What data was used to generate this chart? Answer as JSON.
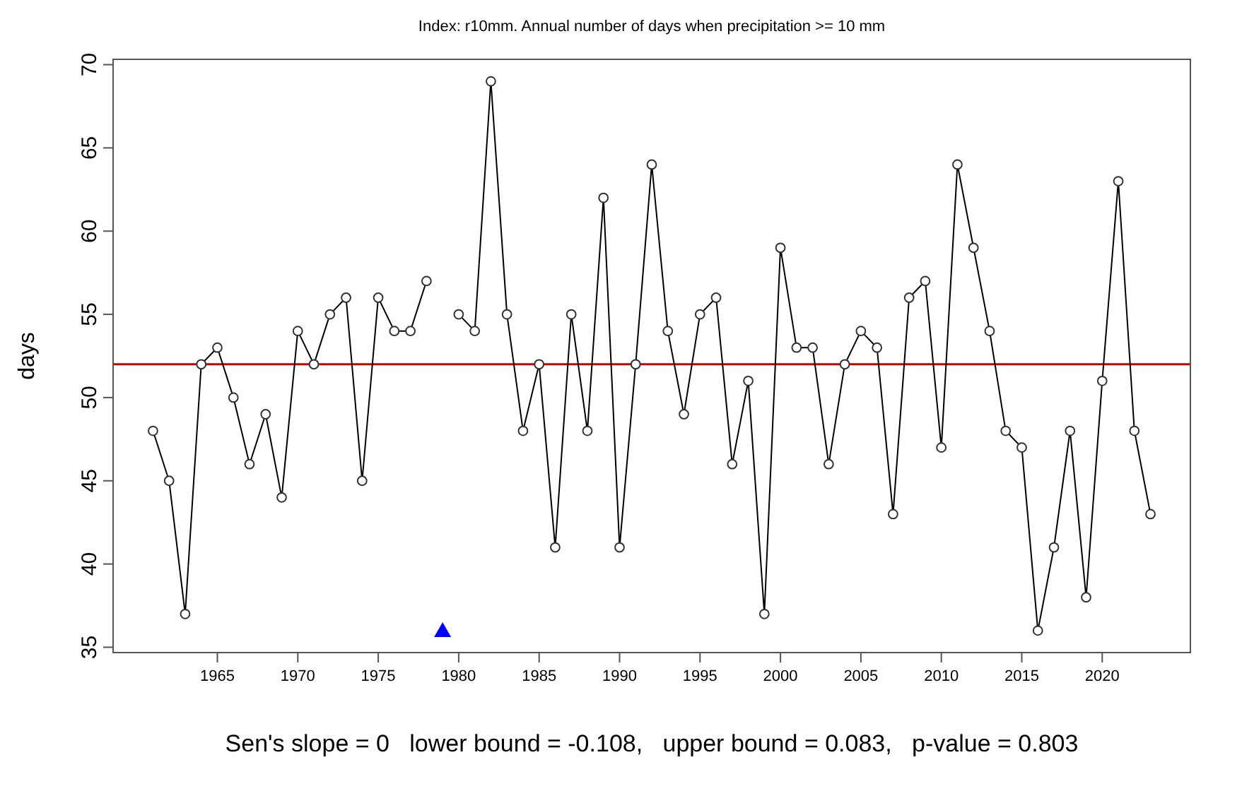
{
  "chart_data": {
    "type": "line",
    "title": "Index: r10mm. Annual number of days when precipitation >= 10 mm",
    "ylabel": "days",
    "x": [
      1961,
      1962,
      1963,
      1964,
      1965,
      1966,
      1967,
      1968,
      1969,
      1970,
      1971,
      1972,
      1973,
      1974,
      1975,
      1976,
      1977,
      1978,
      1979,
      1980,
      1981,
      1982,
      1983,
      1984,
      1985,
      1986,
      1987,
      1988,
      1989,
      1990,
      1991,
      1992,
      1993,
      1994,
      1995,
      1996,
      1997,
      1998,
      1999,
      2000,
      2001,
      2002,
      2003,
      2004,
      2005,
      2006,
      2007,
      2008,
      2009,
      2010,
      2011,
      2012,
      2013,
      2014,
      2015,
      2016,
      2017,
      2018,
      2019,
      2020,
      2021,
      2022,
      2023
    ],
    "series": [
      {
        "color": "#000000",
        "marker": "circle",
        "values": [
          48,
          45,
          37,
          52,
          53,
          50,
          46,
          49,
          44,
          54,
          52,
          55,
          56,
          45,
          56,
          54,
          54,
          57,
          null,
          55,
          54,
          69,
          55,
          48,
          52,
          41,
          55,
          48,
          62,
          41,
          52,
          64,
          54,
          49,
          55,
          56,
          46,
          51,
          37,
          59,
          53,
          53,
          46,
          52,
          54,
          53,
          43,
          56,
          57,
          47,
          64,
          59,
          54,
          48,
          47,
          36,
          41,
          48,
          38,
          51,
          63,
          48,
          43
        ]
      },
      {
        "type": "scatter",
        "color": "#0000ff",
        "marker": "triangle",
        "x": [
          1979
        ],
        "values": [
          36
        ]
      }
    ],
    "xlim": [
      1958.52,
      2025.48
    ],
    "xticks": [
      1965,
      1970,
      1975,
      1980,
      1985,
      1990,
      1995,
      2000,
      2005,
      2010,
      2015,
      2020
    ],
    "ylim": [
      34.68,
      70.32
    ],
    "yticks": [
      35,
      40,
      45,
      50,
      55,
      60,
      65,
      70
    ],
    "ref_lines": [
      {
        "axis": "y",
        "value": 52,
        "color": "#cc0000"
      }
    ],
    "grid": false,
    "annotations": [
      "Sen's slope = 0   lower bound = -0.108,   upper bound = 0.083,   p-value = 0.803"
    ]
  }
}
